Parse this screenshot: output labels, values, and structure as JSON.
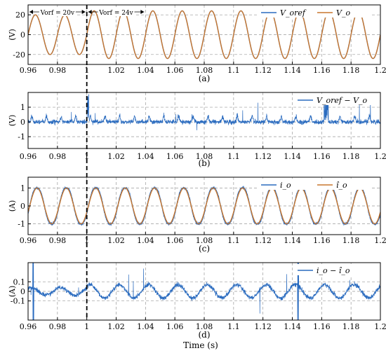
{
  "figure": {
    "xlabel": "Time (s)",
    "x_ticks": [
      "0.96",
      "0.98",
      "1",
      "1.02",
      "1.04",
      "1.06",
      "1.08",
      "1.1",
      "1.12",
      "1.14",
      "1.16",
      "1.18",
      "1.2"
    ],
    "step_time": 1.0
  },
  "colors": {
    "blue": "#2a6bbf",
    "orange": "#c8772f",
    "grid": "#9a9a9a",
    "axis": "#000000"
  },
  "chart_data": [
    {
      "type": "line",
      "caption": "(a)",
      "ylabel": "(V)",
      "xlim": [
        0.96,
        1.2
      ],
      "ylim": [
        -30,
        30
      ],
      "y_ticks": [
        -20,
        0,
        20
      ],
      "grid": true,
      "legend_position": "top-right",
      "annotations": [
        {
          "text": "Vₒᵣₑₒ = 20v",
          "label": "Vorf = 20v",
          "from": 0.96,
          "to": 1.0
        },
        {
          "text": "Vorf = 24v",
          "from": 1.0,
          "to": 1.04
        }
      ],
      "series": [
        {
          "name": "V_oref",
          "color": "#2a6bbf",
          "frequency_hz": 50,
          "amplitude_before": 20,
          "amplitude_after": 24
        },
        {
          "name": "V_o",
          "color": "#c8772f",
          "frequency_hz": 50,
          "amplitude_before": 20,
          "amplitude_after": 24
        }
      ]
    },
    {
      "type": "line",
      "caption": "(b)",
      "ylabel": "(V)",
      "xlim": [
        0.96,
        1.2
      ],
      "ylim": [
        -1.8,
        2.0
      ],
      "y_ticks": [
        -1,
        0,
        1
      ],
      "grid": true,
      "legend_position": "top-right",
      "series": [
        {
          "name": "V_oref − V_o",
          "color": "#2a6bbf",
          "range": [
            -1.4,
            1.9
          ]
        }
      ]
    },
    {
      "type": "line",
      "caption": "(c)",
      "ylabel": "(A)",
      "xlim": [
        0.96,
        1.2
      ],
      "ylim": [
        -1.6,
        1.6
      ],
      "y_ticks": [
        -1,
        0,
        1
      ],
      "grid": true,
      "legend_position": "top-right",
      "series": [
        {
          "name": "i_o",
          "color": "#2a6bbf",
          "frequency_hz": 50,
          "amplitude": 1.05
        },
        {
          "name": "î_o",
          "color": "#c8772f",
          "frequency_hz": 50,
          "amplitude": 1.0
        }
      ]
    },
    {
      "type": "line",
      "caption": "(d)",
      "ylabel": "(A)",
      "xlim": [
        0.96,
        1.2
      ],
      "ylim": [
        -0.3,
        0.3
      ],
      "y_ticks": [
        -0.1,
        0,
        0.1
      ],
      "grid": true,
      "legend_position": "top-right",
      "series": [
        {
          "name": "i_o − î_o",
          "color": "#2a6bbf",
          "range": [
            -0.3,
            0.3
          ]
        }
      ]
    }
  ]
}
